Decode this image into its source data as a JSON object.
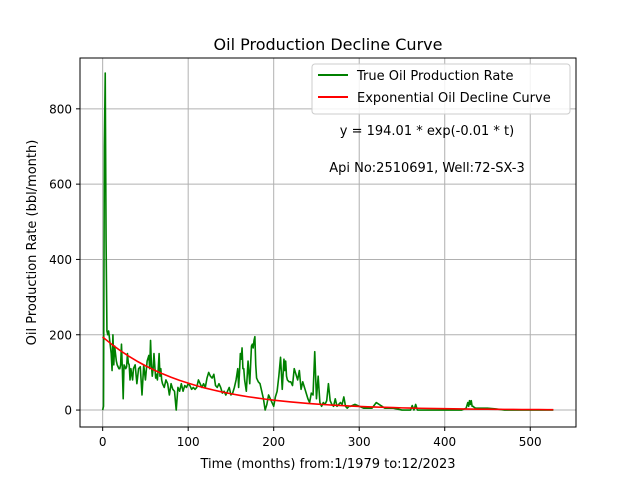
{
  "chart_data": {
    "type": "line",
    "title": "Oil Production Decline Curve",
    "xlabel": "Time (months) from:1/1979 to:12/2023",
    "ylabel": "Oil Production Rate (bbl/month)",
    "xlim": [
      -26.5,
      553.5
    ],
    "ylim": [
      -45,
      935
    ],
    "xticks": [
      0,
      100,
      200,
      300,
      400,
      500
    ],
    "yticks": [
      0,
      200,
      400,
      600,
      800
    ],
    "grid": true,
    "legend_position": "upper right",
    "colors": {
      "true_rate": "#008000",
      "fit": "#ff0000",
      "grid": "#b0b0b0"
    },
    "annotations": [
      "y = 194.01 * exp(-0.01 * t)",
      "Api No:2510691, Well:72-SX-3"
    ],
    "fit_equation": {
      "a": 194.01,
      "b": 0.01
    },
    "series": [
      {
        "name": "True Oil Production Rate",
        "key": "true_rate",
        "x": [
          0,
          1,
          2,
          3,
          4,
          5,
          6,
          7,
          8,
          9,
          10,
          11,
          12,
          13,
          14,
          15,
          16,
          17,
          18,
          19,
          20,
          21,
          22,
          23,
          24,
          25,
          26,
          27,
          28,
          29,
          30,
          31,
          32,
          33,
          34,
          35,
          36,
          38,
          40,
          42,
          44,
          46,
          48,
          50,
          52,
          54,
          55,
          56,
          57,
          58,
          59,
          60,
          61,
          62,
          63,
          64,
          65,
          66,
          67,
          68,
          69,
          70,
          72,
          74,
          76,
          78,
          80,
          82,
          84,
          86,
          88,
          90,
          92,
          94,
          96,
          98,
          100,
          102,
          104,
          106,
          108,
          110,
          112,
          114,
          116,
          118,
          120,
          122,
          124,
          126,
          128,
          130,
          132,
          134,
          136,
          138,
          140,
          142,
          144,
          146,
          148,
          150,
          152,
          154,
          156,
          158,
          159,
          160,
          161,
          162,
          163,
          164,
          165,
          166,
          168,
          170,
          172,
          174,
          175,
          176,
          177,
          178,
          179,
          180,
          182,
          184,
          186,
          188,
          190,
          192,
          194,
          196,
          198,
          200,
          202,
          204,
          206,
          208,
          210,
          211,
          212,
          213,
          214,
          215,
          216,
          218,
          220,
          222,
          224,
          226,
          228,
          230,
          232,
          234,
          236,
          238,
          240,
          242,
          244,
          246,
          248,
          250,
          252,
          254,
          256,
          258,
          260,
          262,
          264,
          266,
          268,
          270,
          272,
          274,
          276,
          278,
          280,
          282,
          284,
          286,
          288,
          290,
          295,
          300,
          305,
          310,
          315,
          320,
          330,
          340,
          350,
          360,
          362,
          364,
          366,
          368,
          370,
          380,
          390,
          400,
          410,
          420,
          425,
          427,
          428,
          429,
          430,
          431,
          432,
          433,
          434,
          436,
          440,
          450,
          460,
          470,
          480,
          490,
          500,
          510,
          520,
          527
        ],
        "y": [
          0,
          10,
          700,
          895,
          450,
          210,
          200,
          210,
          190,
          170,
          150,
          105,
          200,
          120,
          170,
          150,
          130,
          120,
          115,
          110,
          110,
          120,
          175,
          110,
          30,
          120,
          115,
          110,
          115,
          150,
          125,
          120,
          80,
          110,
          95,
          80,
          110,
          120,
          70,
          110,
          115,
          40,
          120,
          80,
          130,
          145,
          110,
          185,
          120,
          90,
          110,
          150,
          115,
          85,
          95,
          80,
          110,
          150,
          90,
          110,
          80,
          70,
          60,
          80,
          70,
          40,
          70,
          55,
          50,
          0,
          60,
          50,
          70,
          50,
          65,
          60,
          70,
          65,
          55,
          60,
          55,
          60,
          80,
          70,
          60,
          70,
          60,
          85,
          100,
          90,
          85,
          95,
          65,
          60,
          70,
          60,
          45,
          50,
          40,
          50,
          60,
          40,
          45,
          60,
          80,
          110,
          60,
          100,
          150,
          135,
          165,
          110,
          110,
          80,
          50,
          130,
          70,
          170,
          175,
          165,
          185,
          195,
          120,
          85,
          75,
          70,
          50,
          30,
          0,
          15,
          40,
          30,
          20,
          10,
          35,
          50,
          90,
          140,
          55,
          95,
          135,
          105,
          130,
          90,
          80,
          75,
          75,
          65,
          110,
          95,
          80,
          105,
          55,
          75,
          60,
          45,
          30,
          20,
          45,
          40,
          155,
          30,
          90,
          20,
          10,
          20,
          15,
          25,
          70,
          25,
          15,
          10,
          30,
          10,
          15,
          20,
          15,
          35,
          10,
          5,
          10,
          10,
          15,
          10,
          5,
          5,
          5,
          20,
          5,
          5,
          0,
          0,
          12,
          0,
          15,
          0,
          0,
          0,
          0,
          0,
          0,
          0,
          5,
          20,
          10,
          25,
          15,
          25,
          10,
          10,
          8,
          5,
          5,
          5,
          3,
          0,
          0,
          0,
          0,
          0,
          0,
          0
        ]
      },
      {
        "name": "Exponential Oil Decline Curve",
        "key": "fit",
        "x": [
          0,
          10,
          20,
          30,
          40,
          50,
          60,
          70,
          80,
          90,
          100,
          110,
          120,
          130,
          140,
          150,
          160,
          170,
          180,
          190,
          200,
          210,
          220,
          230,
          240,
          250,
          260,
          270,
          280,
          290,
          300,
          310,
          320,
          330,
          340,
          350,
          360,
          370,
          380,
          390,
          400,
          410,
          420,
          430,
          440,
          450,
          460,
          470,
          480,
          490,
          500,
          510,
          520,
          527
        ],
        "y": [
          194.0,
          175.6,
          158.9,
          143.7,
          130.0,
          117.7,
          106.5,
          96.3,
          87.2,
          78.9,
          71.4,
          64.6,
          58.4,
          52.9,
          47.8,
          43.3,
          39.2,
          35.4,
          32.1,
          29.0,
          26.3,
          23.8,
          21.5,
          19.5,
          17.6,
          15.9,
          14.4,
          13.0,
          11.8,
          10.7,
          9.7,
          8.7,
          7.9,
          7.2,
          6.5,
          5.8,
          5.3,
          4.8,
          4.3,
          3.9,
          3.6,
          3.2,
          2.9,
          2.6,
          2.4,
          2.2,
          1.9,
          1.8,
          1.6,
          1.4,
          1.3,
          1.2,
          1.1,
          1.0
        ]
      }
    ]
  }
}
